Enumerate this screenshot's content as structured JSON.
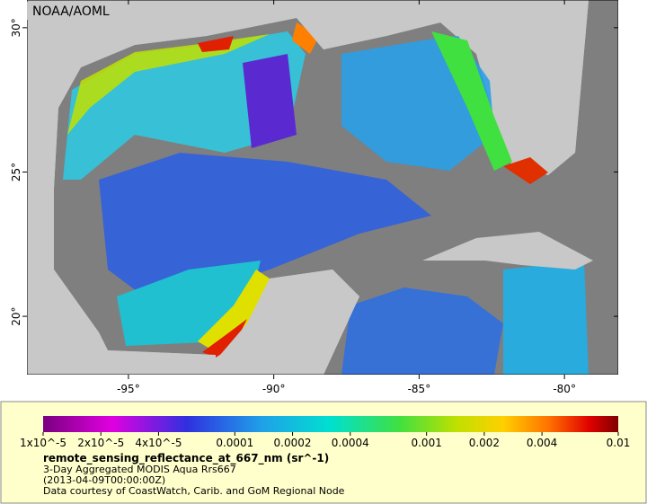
{
  "map": {
    "label": "NOAA/AOML",
    "lon_range": [
      -98.49,
      -78.15
    ],
    "lat_range": [
      17.98,
      30.96
    ],
    "lon_ticks": [
      {
        "value": -95,
        "label": "-95°"
      },
      {
        "value": -90,
        "label": "-90°"
      },
      {
        "value": -85,
        "label": "-85°"
      },
      {
        "value": -80,
        "label": "-80°"
      }
    ],
    "lat_ticks": [
      {
        "value": 30,
        "label": "30°"
      },
      {
        "value": 25,
        "label": "25°"
      },
      {
        "value": 20,
        "label": "20°"
      }
    ]
  },
  "colorbar": {
    "range": [
      1e-05,
      0.01
    ],
    "log_scale": true,
    "ticks": [
      {
        "value": 1e-05,
        "label": "1x10^-5"
      },
      {
        "value": 2e-05,
        "label": "2x10^-5"
      },
      {
        "value": 4e-05,
        "label": "4x10^-5"
      },
      0.0001,
      0.0002,
      0.0004,
      0.001,
      0.002,
      0.004,
      0.01
    ]
  },
  "legend": {
    "variable": "remote_sensing_reflectance_at_667_nm (sr^-1)",
    "description": "3-Day Aggregated MODIS Aqua Rrs667",
    "time": "(2013-04-09T00:00:00Z)",
    "credit": "Data courtesy of CoastWatch, Carib. and GoM Regional Node"
  }
}
